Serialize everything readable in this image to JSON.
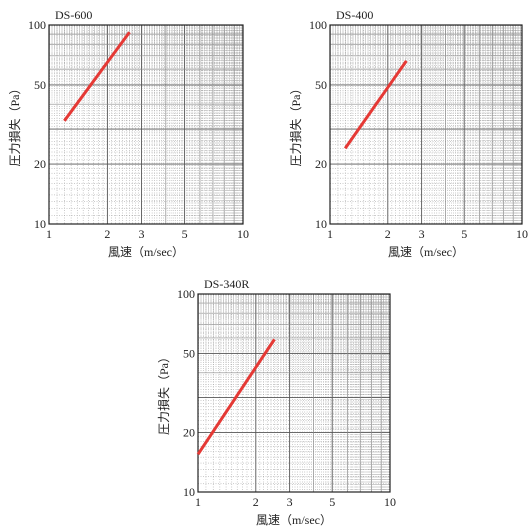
{
  "chart_data": [
    {
      "type": "line",
      "title": "DS-600",
      "xlabel": "風速（m/sec）",
      "ylabel": "圧力損失（Pa）",
      "xscale": "log",
      "yscale": "log",
      "xlim": [
        1,
        10
      ],
      "ylim": [
        10,
        100
      ],
      "xticks": [
        "1",
        "2",
        "3",
        "5",
        "10"
      ],
      "yticks": [
        "10",
        "20",
        "50",
        "100"
      ],
      "grid": true,
      "line_color": "#e53935",
      "series": [
        {
          "x": [
            1.2,
            2.6
          ],
          "y": [
            33,
            92
          ]
        }
      ]
    },
    {
      "type": "line",
      "title": "DS-400",
      "xlabel": "風速（m/sec）",
      "ylabel": "圧力損失（Pa）",
      "xscale": "log",
      "yscale": "log",
      "xlim": [
        1,
        10
      ],
      "ylim": [
        10,
        100
      ],
      "xticks": [
        "1",
        "2",
        "3",
        "5",
        "10"
      ],
      "yticks": [
        "10",
        "20",
        "50",
        "100"
      ],
      "grid": true,
      "line_color": "#e53935",
      "series": [
        {
          "x": [
            1.2,
            2.5
          ],
          "y": [
            24,
            66
          ]
        }
      ]
    },
    {
      "type": "line",
      "title": "DS-340R",
      "xlabel": "風速（m/sec）",
      "ylabel": "圧力損失（Pa）",
      "xscale": "log",
      "yscale": "log",
      "xlim": [
        1,
        10
      ],
      "ylim": [
        10,
        100
      ],
      "xticks": [
        "1",
        "2",
        "3",
        "5",
        "10"
      ],
      "yticks": [
        "10",
        "20",
        "50",
        "100"
      ],
      "grid": true,
      "line_color": "#e53935",
      "series": [
        {
          "x": [
            1.0,
            2.5
          ],
          "y": [
            15.5,
            59
          ]
        }
      ]
    }
  ]
}
